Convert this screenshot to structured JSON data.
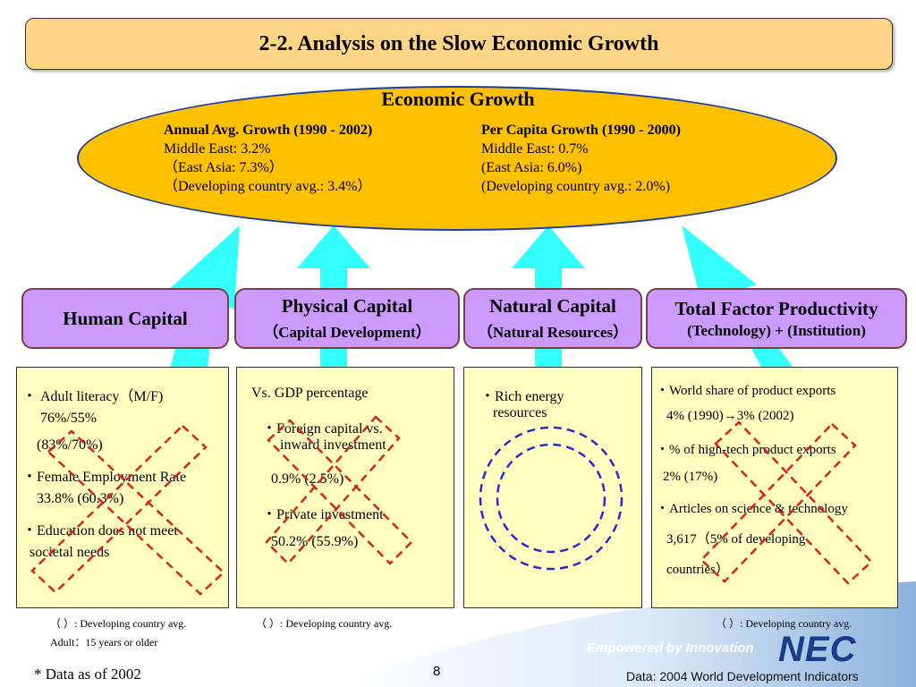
{
  "title": "2-2. Analysis on the Slow Economic Growth",
  "growth": {
    "heading": "Economic Growth",
    "annual": {
      "header": "Annual Avg. Growth (1990 - 2002)",
      "lines": [
        "Middle East: 3.2%",
        "（East Asia: 7.3%）",
        "（Developing country avg.: 3.4%）"
      ]
    },
    "per_capita": {
      "header": "Per Capita Growth (1990 - 2000)",
      "lines": [
        "Middle East: 0.7%",
        "(East Asia: 6.0%)",
        "(Developing country avg.: 2.0%)"
      ]
    }
  },
  "capitals": [
    {
      "line1": "Human Capital",
      "line2": ""
    },
    {
      "line1": "Physical Capital",
      "line2": "（Capital Development）"
    },
    {
      "line1": "Natural Capital",
      "line2": "（Natural Resources）"
    },
    {
      "line1": "Total Factor Productivity",
      "line2": "(Technology) + (Institution)"
    }
  ],
  "human": {
    "lines": [
      "・ Adult literacy（M/F)",
      "76%/55%",
      "(83%/70%)",
      "・Female Employment Rate",
      "33.8% (60.3%)",
      "・Education does not meet",
      "societal needs"
    ]
  },
  "physical": {
    "lines": [
      "Vs. GDP percentage",
      "・Foreign capital vs.",
      "inward investment",
      "0.9% (2.5%)",
      "・Private investment",
      "50.2% (55.9%)"
    ]
  },
  "natural": {
    "lines": [
      "・Rich energy",
      "resources"
    ]
  },
  "tfp": {
    "lines": [
      "・World share of product exports",
      "4% (1990)→3% (2002)",
      "・% of high-tech product exports",
      "2%  (17%)",
      "・Articles on science & technology",
      "3,617（5% of developing",
      "countries）"
    ]
  },
  "notes": {
    "left1": "（ ）: Developing country avg.",
    "left2": "Adult：15 years or older",
    "mid": "（ ）: Developing country avg.",
    "right": "（ ）: Developing country avg.",
    "footer_left": "* Data as of 2002",
    "page_number": "8",
    "source": "Data: 2004 World Development Indicators"
  },
  "logo": {
    "tagline": "Empowered by Innovation",
    "brand": "NEC"
  },
  "colors": {
    "title_bg": "#fed586",
    "ellipse": "#ffc000",
    "arrow": "#33ffff",
    "capital_box": "#cc99ff",
    "data_box": "#ffffc0",
    "cross": "#e02020",
    "circle": "#2a2ad0",
    "logo_blue": "#1a3c8c"
  }
}
